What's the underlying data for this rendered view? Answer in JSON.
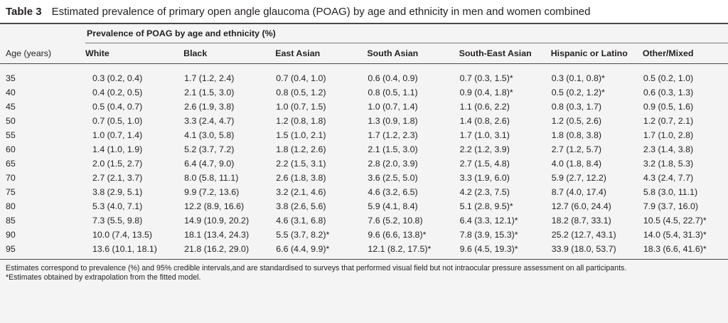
{
  "table": {
    "label": "Table 3",
    "title": "Estimated prevalence of primary open angle glaucoma (POAG) by age and ethnicity in men and women combined",
    "group_header": "Prevalence of POAG by age and ethnicity (%)",
    "age_header": "Age (years)",
    "columns": [
      "White",
      "Black",
      "East Asian",
      "South Asian",
      "South-East Asian",
      "Hispanic or Latino",
      "Other/Mixed"
    ],
    "rows": [
      {
        "age": "35",
        "cells": [
          "0.3 (0.2, 0.4)",
          "1.7 (1.2, 2.4)",
          "0.7 (0.4, 1.0)",
          "0.6 (0.4, 0.9)",
          "0.7 (0.3, 1.5)*",
          "0.3 (0.1, 0.8)*",
          "0.5 (0.2, 1.0)"
        ]
      },
      {
        "age": "40",
        "cells": [
          "0.4 (0.2, 0.5)",
          "2.1 (1.5, 3.0)",
          "0.8 (0.5, 1.2)",
          "0.8 (0.5, 1.1)",
          "0.9 (0.4, 1.8)*",
          "0.5 (0.2, 1.2)*",
          "0.6 (0.3, 1.3)"
        ]
      },
      {
        "age": "45",
        "cells": [
          "0.5 (0.4, 0.7)",
          "2.6 (1.9, 3.8)",
          "1.0 (0.7, 1.5)",
          "1.0 (0.7, 1.4)",
          "1.1 (0.6, 2.2)",
          "0.8 (0.3, 1.7)",
          "0.9 (0.5, 1.6)"
        ]
      },
      {
        "age": "50",
        "cells": [
          "0.7 (0.5, 1.0)",
          "3.3 (2.4, 4.7)",
          "1.2 (0.8, 1.8)",
          "1.3 (0.9, 1.8)",
          "1.4 (0.8, 2.6)",
          "1.2 (0.5, 2.6)",
          "1.2 (0.7, 2.1)"
        ]
      },
      {
        "age": "55",
        "cells": [
          "1.0 (0.7, 1.4)",
          "4.1 (3.0, 5.8)",
          "1.5 (1.0, 2.1)",
          "1.7 (1.2, 2.3)",
          "1.7 (1.0, 3.1)",
          "1.8 (0.8, 3.8)",
          "1.7 (1.0, 2.8)"
        ]
      },
      {
        "age": "60",
        "cells": [
          "1.4 (1.0, 1.9)",
          "5.2 (3.7, 7.2)",
          "1.8 (1.2, 2.6)",
          "2.1 (1.5, 3.0)",
          "2.2 (1.2, 3.9)",
          "2.7 (1.2, 5.7)",
          "2.3 (1.4, 3.8)"
        ]
      },
      {
        "age": "65",
        "cells": [
          "2.0 (1.5, 2.7)",
          "6.4 (4.7, 9.0)",
          "2.2 (1.5, 3.1)",
          "2.8 (2.0, 3.9)",
          "2.7 (1.5, 4.8)",
          "4.0 (1.8, 8.4)",
          "3.2 (1.8, 5.3)"
        ]
      },
      {
        "age": "70",
        "cells": [
          "2.7 (2.1, 3.7)",
          "8.0 (5.8, 11.1)",
          "2.6 (1.8, 3.8)",
          "3.6 (2.5, 5.0)",
          "3.3 (1.9, 6.0)",
          "5.9 (2.7, 12.2)",
          "4.3 (2.4, 7.7)"
        ]
      },
      {
        "age": "75",
        "cells": [
          "3.8 (2.9, 5.1)",
          "9.9 (7.2, 13.6)",
          "3.2 (2.1, 4.6)",
          "4.6 (3.2, 6.5)",
          "4.2 (2.3, 7.5)",
          "8.7 (4.0, 17.4)",
          "5.8 (3.0, 11.1)"
        ]
      },
      {
        "age": "80",
        "cells": [
          "5.3 (4.0, 7.1)",
          "12.2 (8.9, 16.6)",
          "3.8 (2.6, 5.6)",
          "5.9 (4.1, 8.4)",
          "5.1 (2.8, 9.5)*",
          "12.7 (6.0, 24.4)",
          "7.9 (3.7, 16.0)"
        ]
      },
      {
        "age": "85",
        "cells": [
          "7.3 (5.5, 9.8)",
          "14.9 (10.9, 20.2)",
          "4.6 (3.1, 6.8)",
          "7.6 (5.2, 10.8)",
          "6.4 (3.3, 12.1)*",
          "18.2 (8.7, 33.1)",
          "10.5 (4.5, 22.7)*"
        ]
      },
      {
        "age": "90",
        "cells": [
          "10.0 (7.4, 13.5)",
          "18.1 (13.4, 24.3)",
          "5.5 (3.7, 8.2)*",
          "9.6 (6.6, 13.8)*",
          "7.8 (3.9, 15.3)*",
          "25.2 (12.7, 43.1)",
          "14.0 (5.4, 31.3)*"
        ]
      },
      {
        "age": "95",
        "cells": [
          "13.6 (10.1, 18.1)",
          "21.8 (16.2, 29.0)",
          "6.6 (4.4, 9.9)*",
          "12.1 (8.2, 17.5)*",
          "9.6 (4.5, 19.3)*",
          "33.9 (18.0, 53.7)",
          "18.3 (6.6, 41.6)*"
        ]
      }
    ]
  },
  "footnotes": {
    "note1": "Estimates correspond to prevalence (%) and 95% credible intervals,and are standardised to surveys that performed visual field but not intraocular pressure assessment on all participants.",
    "note2": "*Estimates obtained by extrapolation from the fitted model."
  }
}
